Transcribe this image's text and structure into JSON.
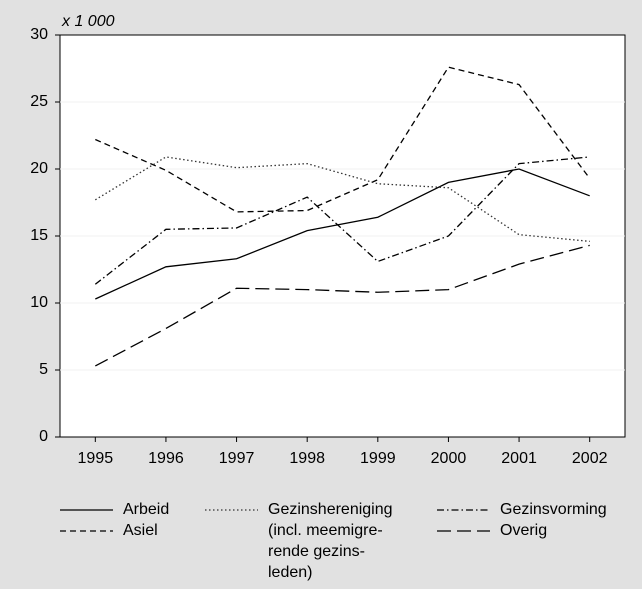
{
  "chart_data": {
    "type": "line",
    "unit_label": "x 1 000",
    "categories": [
      "1995",
      "1996",
      "1997",
      "1998",
      "1999",
      "2000",
      "2001",
      "2002"
    ],
    "ylim": [
      0,
      30
    ],
    "yticks": [
      0,
      5,
      10,
      15,
      20,
      25,
      30
    ],
    "grid": true,
    "series": [
      {
        "name": "Arbeid",
        "color": "#000000",
        "dash": "none",
        "values": [
          10.3,
          12.7,
          13.3,
          15.4,
          16.4,
          19.0,
          20.0,
          18.0
        ]
      },
      {
        "name": "Asiel",
        "color": "#000000",
        "dash": "6,4",
        "values": [
          22.2,
          19.9,
          16.8,
          16.9,
          19.2,
          27.6,
          26.3,
          19.3
        ]
      },
      {
        "name": "Gezinshereniging\n(incl. meemigre-\nrende gezins-\nleden)",
        "color": "#333333",
        "dash": "1.5,2.5",
        "values": [
          17.7,
          20.9,
          20.1,
          20.4,
          18.9,
          18.6,
          15.1,
          14.6
        ]
      },
      {
        "name": "Gezinsvorming",
        "color": "#000000",
        "dash": "7,3,1.5,3",
        "values": [
          11.4,
          15.5,
          15.6,
          17.9,
          13.1,
          15.0,
          20.4,
          20.9
        ]
      },
      {
        "name": "Overig",
        "color": "#000000",
        "dash": "14,6",
        "values": [
          5.3,
          8.1,
          11.1,
          11.0,
          10.8,
          11.0,
          12.9,
          14.3
        ]
      }
    ]
  }
}
